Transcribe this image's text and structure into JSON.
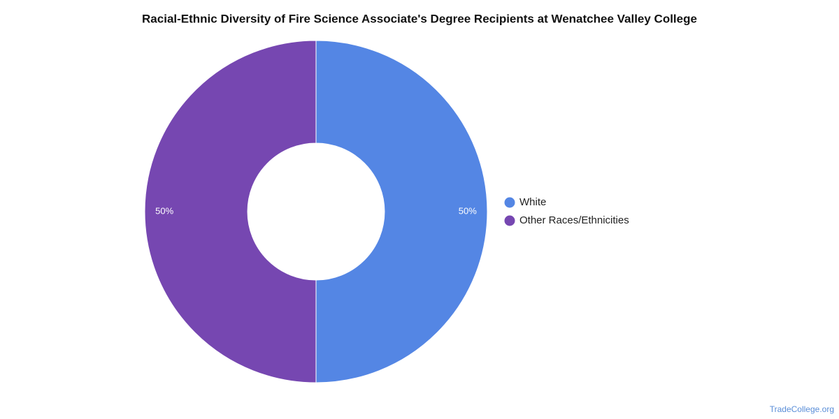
{
  "chart_data": {
    "type": "donut",
    "title": "Racial-Ethnic Diversity of Fire Science Associate's Degree Recipients at Wenatchee Valley College",
    "categories": [
      "White",
      "Other Races/Ethnicities"
    ],
    "values": [
      50,
      50
    ],
    "value_labels": [
      "50%",
      "50%"
    ],
    "colors": [
      "#5486e4",
      "#7647b1"
    ],
    "legend": "right",
    "credit": "TradeCollege.org"
  }
}
